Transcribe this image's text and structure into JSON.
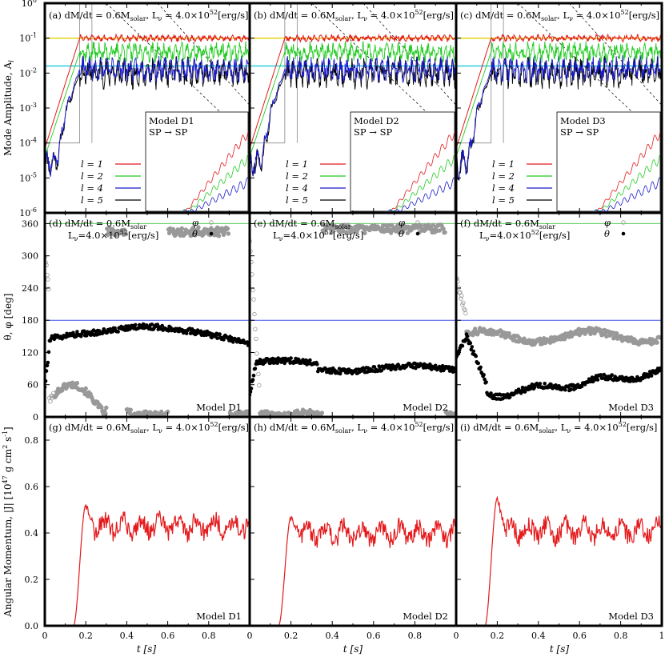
{
  "colors": {
    "l1": "#e41a1c",
    "l2": "#22cc22",
    "l4": "#1a1acc",
    "l5": "#000000",
    "ref_yellow": "#e0d000",
    "ref_cyan": "#18c8d8",
    "phi_marker": "#999999",
    "theta_marker": "#000000",
    "line_360": "#55cc55",
    "line_180": "#4455ee",
    "angmom": "#e41a1c"
  },
  "axes": {
    "row1_ylabel": "Mode Amplitude, A",
    "row1_ylabel_sub": "l",
    "row2_ylabel": "θ, φ [deg]",
    "row3_ylabel": "Angular Momentum, |J| [10",
    "row3_ylabel_exp": "47",
    "row3_ylabel_tail": " g cm",
    "row3_ylabel_exp2": "2",
    "row3_ylabel_tail2": " s",
    "row3_ylabel_exp3": "-1",
    "row3_ylabel_end": "]",
    "xlabel": "t [s]",
    "x_ticks": [
      "0",
      "0.2",
      "0.4",
      "0.6",
      "0.8",
      "1"
    ],
    "row1_yticks": [
      "10",
      "10",
      "10",
      "10",
      "10",
      "10",
      "10"
    ],
    "row1_yexps": [
      "0",
      "-1",
      "-2",
      "-3",
      "-4",
      "-5",
      "-6"
    ],
    "row2_yticks": [
      "360",
      "300",
      "240",
      "180",
      "120",
      "60",
      "0"
    ],
    "row3_yticks": [
      "0.8",
      "0.6",
      "0.4",
      "0.2",
      "0.0"
    ]
  },
  "panels": {
    "a": {
      "tag": "(a)",
      "model": "Model D1",
      "transition": "SP → SP"
    },
    "b": {
      "tag": "(b)",
      "model": "Model D2",
      "transition": "SP → SP"
    },
    "c": {
      "tag": "(c)",
      "model": "Model D3",
      "transition": "SP → SP"
    },
    "d": {
      "tag": "(d)",
      "model": "Model D1"
    },
    "e": {
      "tag": "(e)",
      "model": "Model D2"
    },
    "f": {
      "tag": "(f)",
      "model": "Model D3"
    },
    "g": {
      "tag": "(g)",
      "model": "Model D1"
    },
    "h": {
      "tag": "(h)",
      "model": "Model D2"
    },
    "i": {
      "tag": "(i)",
      "model": "Model D3"
    }
  },
  "title_text": {
    "mdot": "dM/dt = 0.6M",
    "mdot_sub": "solar",
    "lnu": "L",
    "lnu_sub": "ν",
    "lnu_val": " = 4.0×10",
    "lnu_val_compact": "=4.0×10",
    "lnu_exp": "52",
    "lnu_unit": "[erg/s]"
  },
  "legend": {
    "modes": [
      "l = 1",
      "l = 2",
      "l = 4",
      "l = 5"
    ],
    "phi": "φ",
    "theta": "θ"
  },
  "chart_data": [
    {
      "panel": "a-c",
      "type": "line",
      "x_label": "t [s]",
      "y_label": "Mode Amplitude, A_l",
      "y_scale": "log",
      "xlim": [
        0,
        1
      ],
      "ylim": [
        1e-06,
        1
      ],
      "series_names": [
        "l = 1",
        "l = 2",
        "l = 4",
        "l = 5"
      ],
      "saturation_levels": {
        "l1": 0.1,
        "l2": 0.04,
        "l4": 0.013,
        "l5": 0.01
      },
      "reference_lines": [
        0.1,
        0.016
      ],
      "growth": {
        "t_start": 0.0,
        "t_saturate": 0.17
      }
    },
    {
      "panel": "d-f",
      "type": "scatter",
      "x_label": "t [s]",
      "y_label": "θ, φ [deg]",
      "xlim": [
        0,
        1
      ],
      "ylim": [
        0,
        380
      ],
      "series": [
        {
          "name": "θ",
          "models": {
            "D1": 155,
            "D2": 95,
            "D3": 45
          }
        },
        {
          "name": "φ",
          "models": {
            "D1": 355,
            "D2": 350,
            "D3": 155
          }
        }
      ],
      "reference_lines": [
        360,
        180
      ]
    },
    {
      "panel": "g-i",
      "type": "line",
      "x_label": "t [s]",
      "y_label": "Angular Momentum, |J| [10^47 g cm^2 s^-1]",
      "xlim": [
        0,
        1
      ],
      "ylim": [
        0,
        0.9
      ],
      "series": [
        {
          "model": "D1",
          "rise_start": 0.14,
          "peak": 0.52,
          "plateau": 0.43
        },
        {
          "model": "D2",
          "rise_start": 0.14,
          "peak": 0.47,
          "plateau": 0.4
        },
        {
          "model": "D3",
          "rise_start": 0.14,
          "peak": 0.55,
          "plateau": 0.41
        }
      ]
    }
  ]
}
